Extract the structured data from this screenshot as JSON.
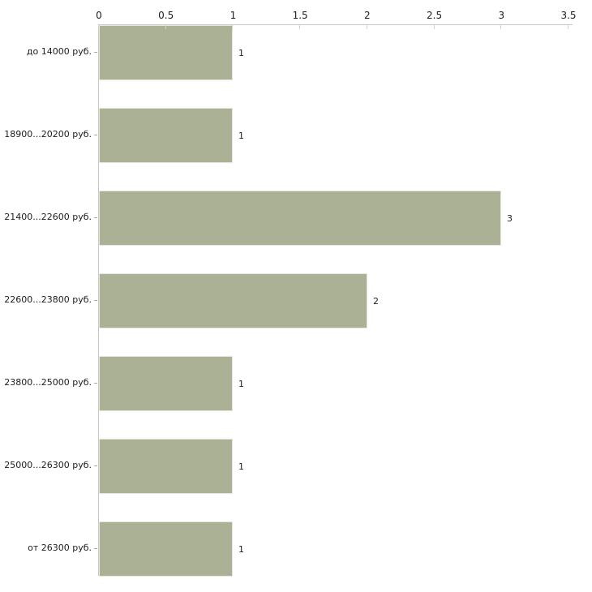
{
  "chart_data": {
    "type": "bar",
    "orientation": "horizontal",
    "title": "",
    "xlabel": "",
    "ylabel": "",
    "categories": [
      "до 14000 руб.",
      "18900...20200 руб.",
      "21400...22600 руб.",
      "22600...23800 руб.",
      "23800...25000 руб.",
      "25000...26300 руб.",
      "от 26300 руб."
    ],
    "values": [
      1,
      1,
      3,
      2,
      1,
      1,
      1
    ],
    "value_labels": [
      "1",
      "1",
      "3",
      "2",
      "1",
      "1",
      "1"
    ],
    "xlim": [
      0,
      3.5
    ],
    "xticks": [
      0,
      0.5,
      1,
      1.5,
      2,
      2.5,
      3,
      3.5
    ],
    "xtick_labels": [
      "0",
      "0.5",
      "1",
      "1.5",
      "2",
      "2.5",
      "3",
      "3.5"
    ],
    "grid": false,
    "legend": "none",
    "axis_position": "top",
    "colors": {
      "bar_fill": "#abb194",
      "bar_border": "#e6e7df",
      "axis": "#c8c8c4",
      "xtick": "#d6d8b4",
      "ytick": "#a9ab96",
      "text": "#1c1c1c",
      "background": "#ffffff"
    }
  }
}
